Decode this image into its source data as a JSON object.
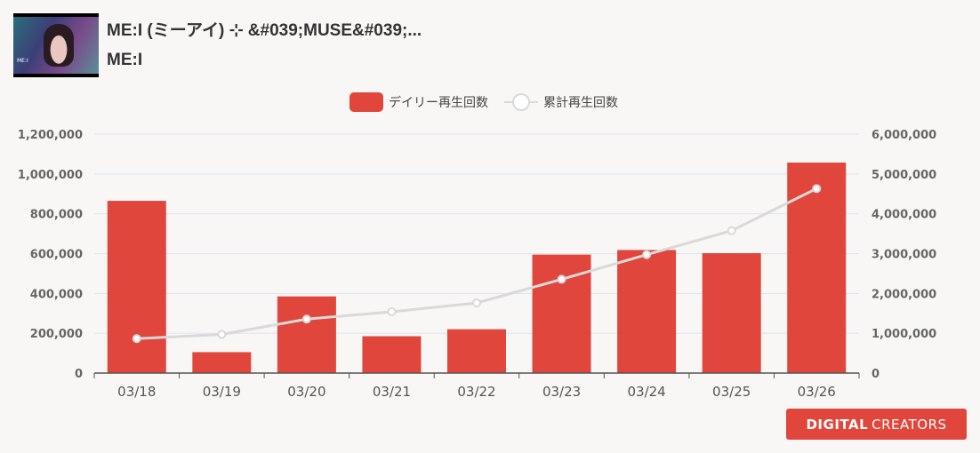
{
  "header": {
    "title": "ME:I (ミーアイ) ⊹ &#039;MUSE&#039;...",
    "subtitle": "ME:I",
    "thumbnail_caption": "ME:I"
  },
  "legend": {
    "daily": "デイリー再生回数",
    "cumulative": "累計再生回数"
  },
  "logo": {
    "text": "DIGITAL CREATORS",
    "bold": "DIGITAL",
    "thin": "CREATORS"
  },
  "colors": {
    "bar": "#e0463c",
    "line": "#d9d9d9",
    "grid": "#dde3ef",
    "axis": "#555555"
  },
  "chart_data": {
    "type": "bar",
    "categories": [
      "03/18",
      "03/19",
      "03/20",
      "03/21",
      "03/22",
      "03/23",
      "03/24",
      "03/25",
      "03/26"
    ],
    "series": [
      {
        "name": "デイリー再生回数",
        "type": "bar",
        "axis": "left",
        "values": [
          865000,
          105000,
          385000,
          185000,
          220000,
          595000,
          618000,
          602000,
          1057000
        ]
      },
      {
        "name": "累計再生回数",
        "type": "line",
        "axis": "right",
        "values": [
          865000,
          970000,
          1355000,
          1540000,
          1760000,
          2355000,
          2973000,
          3575000,
          4632000
        ]
      }
    ],
    "y_left": {
      "min": 0,
      "max": 1200000,
      "ticks": [
        "0",
        "200,000",
        "400,000",
        "600,000",
        "800,000",
        "1,000,000",
        "1,200,000"
      ]
    },
    "y_right": {
      "min": 0,
      "max": 6000000,
      "ticks": [
        "0",
        "1,000,000",
        "2,000,000",
        "3,000,000",
        "4,000,000",
        "5,000,000",
        "6,000,000"
      ]
    },
    "grid": true,
    "legend_position": "top-center"
  }
}
